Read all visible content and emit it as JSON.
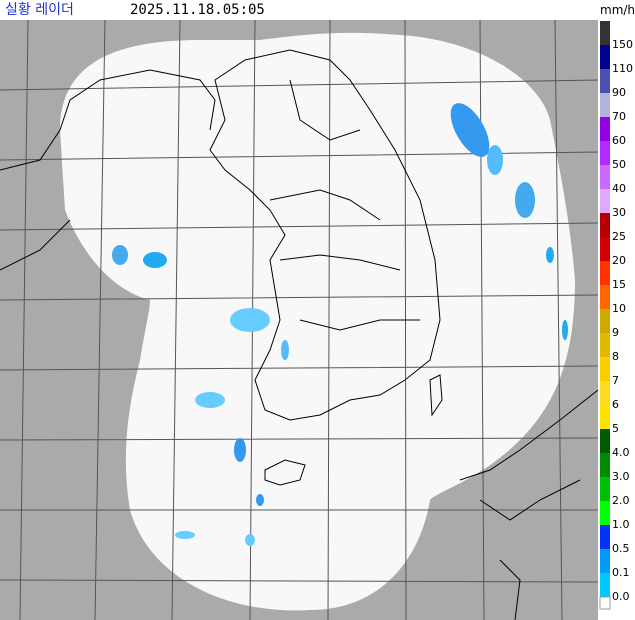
{
  "header": {
    "title": "실황 레이더",
    "time": "2025.11.18.05:05",
    "unit": "mm/h"
  },
  "legend": {
    "items": [
      {
        "label": "150",
        "color": "#333333"
      },
      {
        "label": "110",
        "color": "#000390"
      },
      {
        "label": "90",
        "color": "#4c4eb1"
      },
      {
        "label": "70",
        "color": "#b3b4de"
      },
      {
        "label": "60",
        "color": "#9300e4"
      },
      {
        "label": "50",
        "color": "#b329ff"
      },
      {
        "label": "40",
        "color": "#c969ff"
      },
      {
        "label": "30",
        "color": "#e0a9ff"
      },
      {
        "label": "25",
        "color": "#b40000"
      },
      {
        "label": "20",
        "color": "#d20000"
      },
      {
        "label": "15",
        "color": "#ff3200"
      },
      {
        "label": "10",
        "color": "#ff6600"
      },
      {
        "label": "9",
        "color": "#ccaa00"
      },
      {
        "label": "8",
        "color": "#e0b900"
      },
      {
        "label": "7",
        "color": "#f9cd00"
      },
      {
        "label": "6",
        "color": "#ffdc1f"
      },
      {
        "label": "5",
        "color": "#ffe100"
      },
      {
        "label": "4.0",
        "color": "#005a00"
      },
      {
        "label": "3.0",
        "color": "#008c00"
      },
      {
        "label": "2.0",
        "color": "#00be00"
      },
      {
        "label": "1.0",
        "color": "#00ff00"
      },
      {
        "label": "0.5",
        "color": "#0033f5"
      },
      {
        "label": "0.1",
        "color": "#009bf5"
      },
      {
        "label": "0.0",
        "color": "#00c8ff"
      }
    ]
  }
}
